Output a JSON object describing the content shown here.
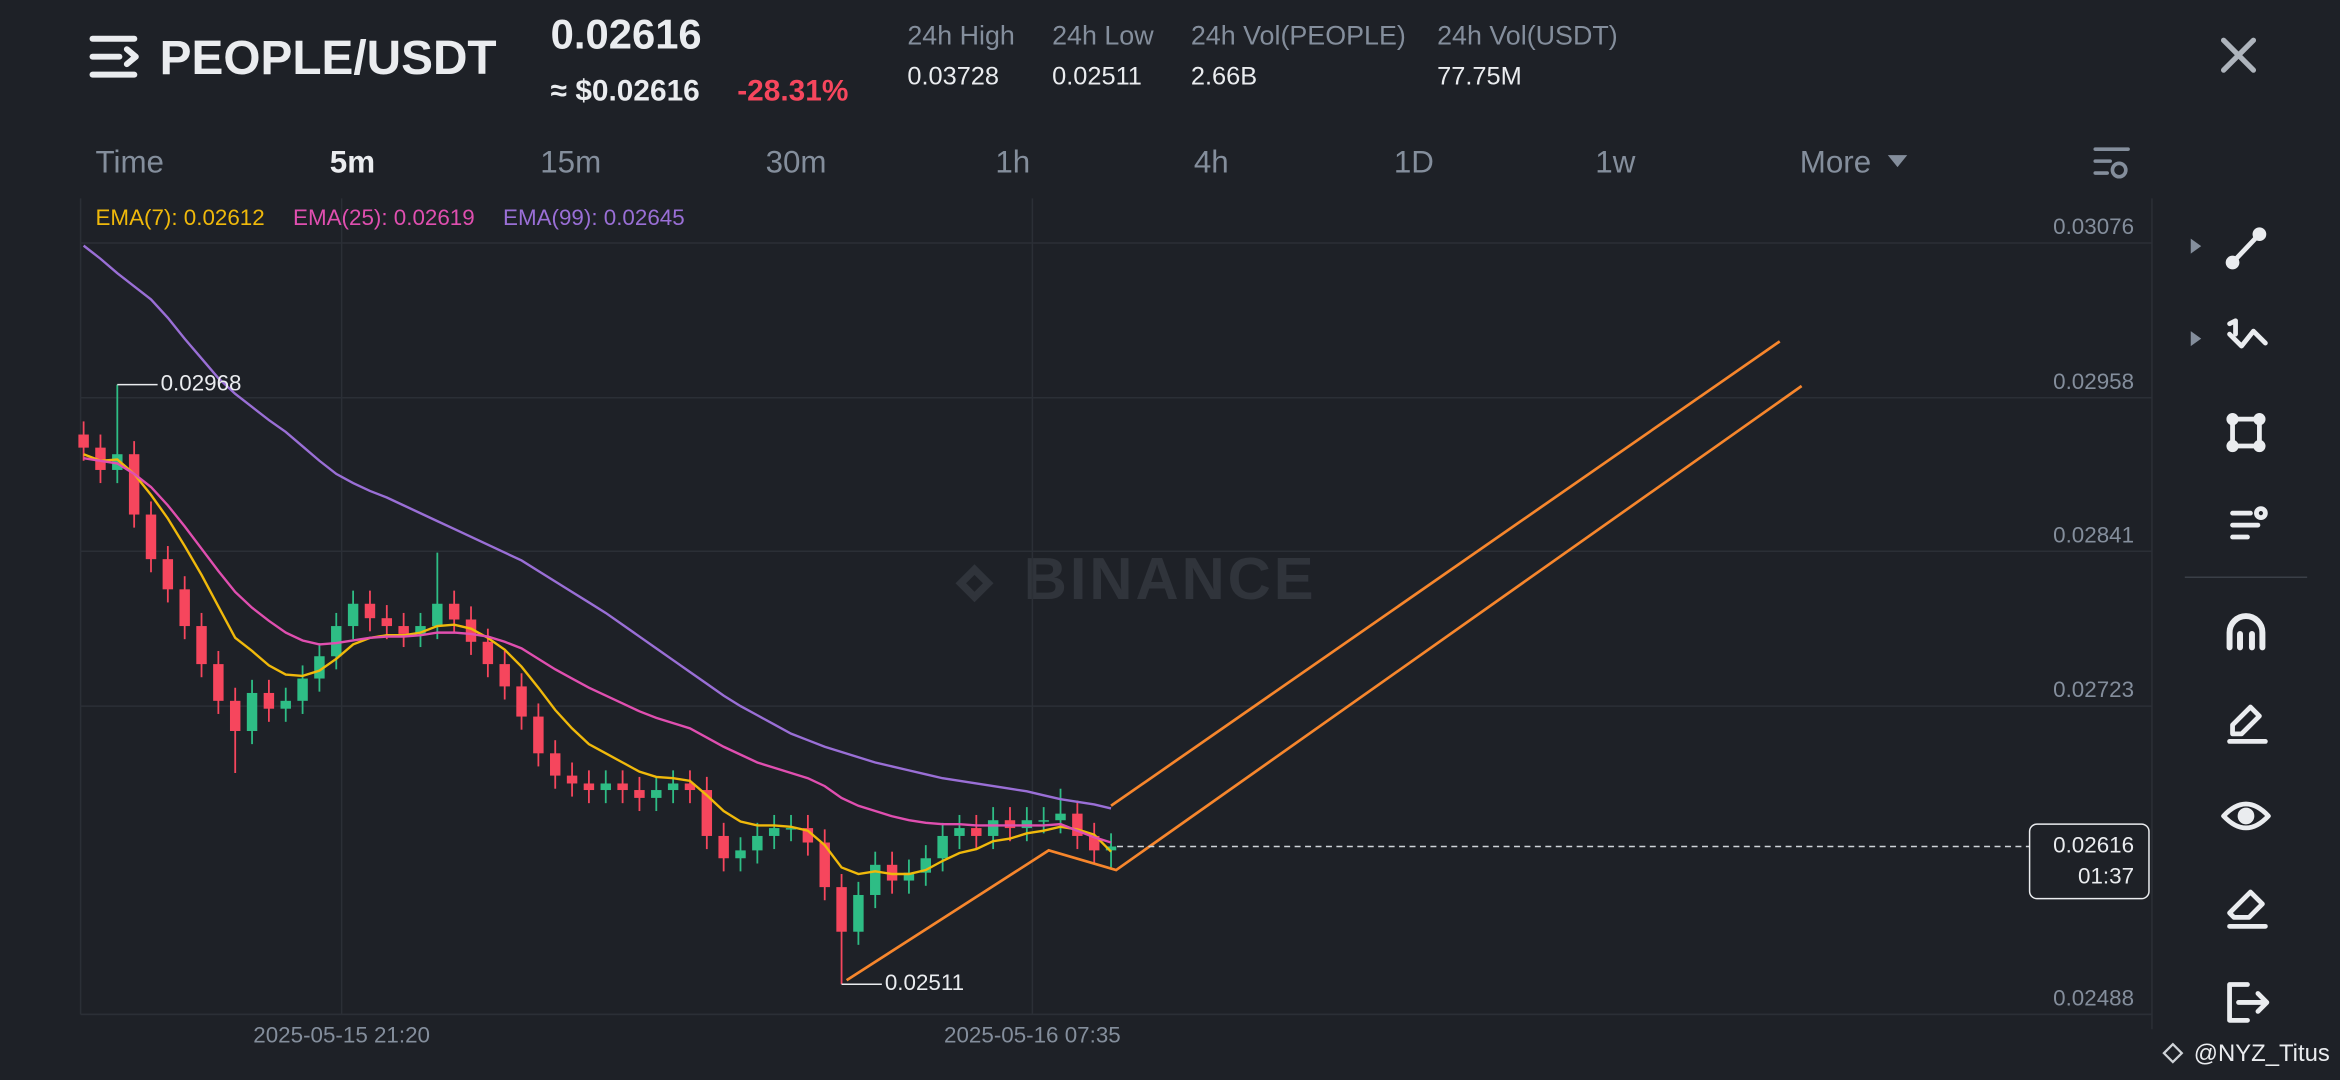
{
  "header": {
    "pair": "PEOPLE/USDT",
    "price": "0.02616",
    "price_usd": "≈ $0.02616",
    "change": "-28.31%",
    "stats": [
      {
        "label": "24h High",
        "value": "0.03728"
      },
      {
        "label": "24h Low",
        "value": "0.02511"
      },
      {
        "label": "24h Vol(PEOPLE)",
        "value": "2.66B"
      },
      {
        "label": "24h Vol(USDT)",
        "value": "77.75M"
      }
    ]
  },
  "tabs": [
    "Time",
    "5m",
    "15m",
    "30m",
    "1h",
    "4h",
    "1D",
    "1w",
    "More"
  ],
  "active_tab": 1,
  "watermark": "BINANCE",
  "credit": "@NYZ_Titus",
  "chart_data": {
    "type": "candlestick",
    "up_color": "#2ebd85",
    "down_color": "#f6465d",
    "candles": {
      "open": [
        0.0293,
        0.0292,
        0.02903,
        0.02915,
        0.02869,
        0.02835,
        0.02812,
        0.02784,
        0.02755,
        0.02727,
        0.02704,
        0.02733,
        0.02721,
        0.02727,
        0.02744,
        0.02761,
        0.02784,
        0.02801,
        0.0279,
        0.02784,
        0.02778,
        0.02784,
        0.02801,
        0.02789,
        0.02772,
        0.02755,
        0.02738,
        0.02715,
        0.02687,
        0.0267,
        0.02664,
        0.02659,
        0.02664,
        0.02659,
        0.02653,
        0.02659,
        0.02664,
        0.02659,
        0.02624,
        0.02607,
        0.02613,
        0.02624,
        0.0263,
        0.0263,
        0.02619,
        0.02585,
        0.02551,
        0.02579,
        0.02602,
        0.0259,
        0.02596,
        0.02607,
        0.02624,
        0.0263,
        0.02624,
        0.02636,
        0.0263,
        0.02636,
        0.02636,
        0.02641,
        0.02624,
        0.02613
      ],
      "high": [
        0.0294,
        0.0293,
        0.02968,
        0.02925,
        0.02879,
        0.02845,
        0.02822,
        0.02794,
        0.02765,
        0.02737,
        0.02743,
        0.02743,
        0.02737,
        0.02754,
        0.02771,
        0.02794,
        0.02811,
        0.02811,
        0.028,
        0.02794,
        0.02794,
        0.0284,
        0.02811,
        0.02799,
        0.02782,
        0.02765,
        0.02748,
        0.02725,
        0.02697,
        0.0268,
        0.02674,
        0.02674,
        0.02674,
        0.02669,
        0.02669,
        0.02674,
        0.02674,
        0.02669,
        0.02634,
        0.02623,
        0.02634,
        0.0264,
        0.0264,
        0.0264,
        0.02629,
        0.02595,
        0.02589,
        0.02612,
        0.02612,
        0.02606,
        0.02617,
        0.02634,
        0.0264,
        0.0264,
        0.02646,
        0.02646,
        0.02646,
        0.02646,
        0.0266,
        0.02651,
        0.02634,
        0.02626
      ],
      "low": [
        0.0291,
        0.02893,
        0.02893,
        0.02859,
        0.02825,
        0.02802,
        0.02774,
        0.02745,
        0.02717,
        0.02672,
        0.02694,
        0.02711,
        0.02711,
        0.02717,
        0.02734,
        0.02751,
        0.02774,
        0.0278,
        0.02774,
        0.02768,
        0.02768,
        0.02774,
        0.02779,
        0.02762,
        0.02745,
        0.02728,
        0.02705,
        0.02677,
        0.0266,
        0.02654,
        0.02649,
        0.02649,
        0.02649,
        0.02643,
        0.02643,
        0.02649,
        0.02649,
        0.02614,
        0.02597,
        0.02597,
        0.02603,
        0.02614,
        0.0262,
        0.02609,
        0.02575,
        0.02511,
        0.02541,
        0.02569,
        0.0258,
        0.0258,
        0.02586,
        0.02597,
        0.02614,
        0.02614,
        0.02614,
        0.0262,
        0.0262,
        0.02626,
        0.02626,
        0.02614,
        0.02603,
        0.026
      ],
      "close": [
        0.0292,
        0.02903,
        0.02915,
        0.02869,
        0.02835,
        0.02812,
        0.02784,
        0.02755,
        0.02727,
        0.02704,
        0.02733,
        0.02721,
        0.02727,
        0.02744,
        0.02761,
        0.02784,
        0.02801,
        0.0279,
        0.02784,
        0.02778,
        0.02784,
        0.02801,
        0.02789,
        0.02772,
        0.02755,
        0.02738,
        0.02715,
        0.02687,
        0.0267,
        0.02664,
        0.02659,
        0.02664,
        0.02659,
        0.02653,
        0.02659,
        0.02664,
        0.02659,
        0.02624,
        0.02607,
        0.02613,
        0.02624,
        0.0263,
        0.0263,
        0.02619,
        0.02585,
        0.02551,
        0.02579,
        0.02602,
        0.0259,
        0.02596,
        0.02607,
        0.02624,
        0.0263,
        0.02624,
        0.02636,
        0.0263,
        0.02636,
        0.02636,
        0.02641,
        0.02624,
        0.02613,
        0.02616
      ]
    },
    "series": [
      {
        "name": "EMA(7): 0.02612",
        "color": "#f0b90b",
        "values": [
          0.02915,
          0.0291,
          0.02911,
          0.029,
          0.02884,
          0.02866,
          0.02845,
          0.02823,
          0.02799,
          0.02775,
          0.02765,
          0.02754,
          0.02747,
          0.02746,
          0.0275,
          0.02759,
          0.0277,
          0.02775,
          0.02777,
          0.02777,
          0.02779,
          0.02784,
          0.02785,
          0.02782,
          0.02775,
          0.02766,
          0.02753,
          0.02737,
          0.0272,
          0.02706,
          0.02694,
          0.02687,
          0.0268,
          0.02673,
          0.02669,
          0.02668,
          0.02666,
          0.02655,
          0.02643,
          0.02635,
          0.02632,
          0.02632,
          0.02631,
          0.02628,
          0.02617,
          0.026,
          0.02595,
          0.02597,
          0.02595,
          0.02595,
          0.02598,
          0.02605,
          0.02611,
          0.02614,
          0.0262,
          0.02622,
          0.02626,
          0.02628,
          0.02631,
          0.02629,
          0.02625,
          0.02612
        ]
      },
      {
        "name": "EMA(25): 0.02619",
        "color": "#e04fb0",
        "values": [
          0.02912,
          0.0291,
          0.02908,
          0.029,
          0.0289,
          0.02876,
          0.0286,
          0.02843,
          0.02826,
          0.0281,
          0.02798,
          0.02788,
          0.02779,
          0.02773,
          0.0277,
          0.02771,
          0.02773,
          0.02775,
          0.02776,
          0.02776,
          0.02777,
          0.02779,
          0.02779,
          0.02778,
          0.02776,
          0.02772,
          0.02767,
          0.02759,
          0.02751,
          0.02744,
          0.02737,
          0.02731,
          0.02725,
          0.02719,
          0.02714,
          0.0271,
          0.02706,
          0.02699,
          0.02692,
          0.02686,
          0.0268,
          0.02676,
          0.02672,
          0.02668,
          0.02662,
          0.02653,
          0.02647,
          0.02643,
          0.02639,
          0.02636,
          0.02634,
          0.02633,
          0.02633,
          0.02632,
          0.02632,
          0.02632,
          0.02632,
          0.02632,
          0.02633,
          0.02628,
          0.02623,
          0.02619
        ]
      },
      {
        "name": "EMA(99): 0.02645",
        "color": "#9a6fd6",
        "values": [
          0.03074,
          0.03064,
          0.03053,
          0.03043,
          0.03033,
          0.03019,
          0.03003,
          0.02988,
          0.02973,
          0.02961,
          0.02951,
          0.02941,
          0.02932,
          0.02921,
          0.0291,
          0.029,
          0.02893,
          0.02887,
          0.02882,
          0.02876,
          0.0287,
          0.02864,
          0.02858,
          0.02852,
          0.02846,
          0.0284,
          0.02834,
          0.02826,
          0.02818,
          0.0281,
          0.02802,
          0.02794,
          0.02785,
          0.02776,
          0.02767,
          0.02758,
          0.02749,
          0.0274,
          0.02731,
          0.02723,
          0.02716,
          0.02709,
          0.02702,
          0.02697,
          0.02692,
          0.02688,
          0.02684,
          0.0268,
          0.02677,
          0.02674,
          0.02671,
          0.02668,
          0.02666,
          0.02664,
          0.02662,
          0.0266,
          0.02658,
          0.02655,
          0.02652,
          0.0265,
          0.02648,
          0.02645
        ]
      }
    ],
    "xlim": [
      -0.18,
      122.8
    ],
    "xticks": [
      {
        "value": 15.32,
        "label": "2025-05-15 21:20"
      },
      {
        "value": 56.33,
        "label": "2025-05-16 07:35"
      }
    ],
    "ylim": [
      0.02488,
      0.0311
    ],
    "yticks": [
      0.03076,
      0.02958,
      0.02841,
      0.02723,
      0.02488
    ],
    "grid": true,
    "annotations": [
      {
        "index": 2,
        "value": 0.02968
      },
      {
        "index": 45,
        "value": 0.02511
      }
    ],
    "last_price": {
      "value": 0.02616,
      "countdown": "01:37"
    },
    "drawings": [
      {
        "color": "#f7862c",
        "x": [
          45.3,
          57.3,
          61.3,
          102.0
        ],
        "y": [
          0.02514,
          0.02613,
          0.02598,
          0.02967
        ]
      },
      {
        "color": "#f7862c",
        "x": [
          61.0,
          100.7
        ],
        "y": [
          0.02647,
          0.03001
        ]
      }
    ]
  }
}
